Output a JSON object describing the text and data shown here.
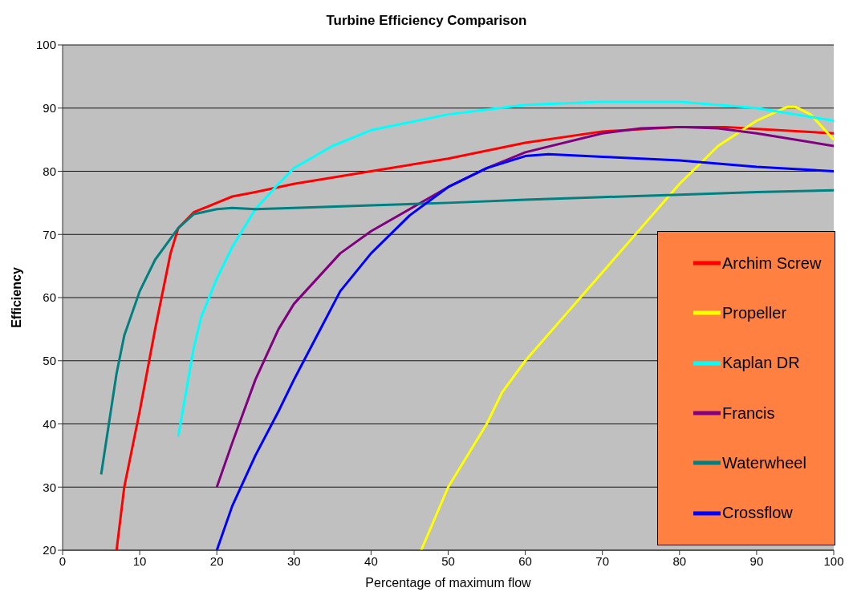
{
  "chart_data": {
    "type": "line",
    "title": "Turbine Efficiency Comparison",
    "xlabel": "Percentage of maximum flow",
    "ylabel": "Efficiency",
    "xlim": [
      0,
      100
    ],
    "xticks": [
      0,
      10,
      20,
      30,
      40,
      50,
      60,
      70,
      80,
      90,
      100
    ],
    "ylim": [
      20,
      100
    ],
    "yticks": [
      20,
      30,
      40,
      50,
      60,
      70,
      80,
      90,
      100
    ],
    "grid": "y",
    "legend": "right",
    "marker": "none",
    "line_style": "solid",
    "series": [
      {
        "name": "Archim Screw",
        "color": "#ff0000",
        "x": [
          7,
          8,
          10,
          12,
          14,
          15,
          17,
          20,
          22,
          25,
          30,
          40,
          50,
          60,
          70,
          80,
          86,
          90,
          100
        ],
        "values": [
          20,
          30,
          42,
          55,
          67,
          71,
          73.5,
          75,
          76,
          76.7,
          78,
          80,
          82,
          84.5,
          86.3,
          87,
          87,
          86.7,
          86
        ]
      },
      {
        "name": "Propeller",
        "color": "#ffff00",
        "x": [
          46.5,
          50,
          55,
          57,
          60,
          65,
          70,
          75,
          80,
          85,
          90,
          94,
          95,
          97,
          100
        ],
        "values": [
          20,
          30,
          40,
          45,
          50,
          57,
          64,
          71,
          78,
          84,
          88,
          90.2,
          90.2,
          89,
          85
        ]
      },
      {
        "name": "Kaplan DR",
        "color": "#00ffff",
        "x": [
          15,
          16,
          17,
          18,
          20,
          22,
          25,
          28,
          30,
          35,
          40,
          50,
          60,
          70,
          80,
          90,
          95,
          100
        ],
        "values": [
          38,
          45,
          52,
          57,
          63,
          68,
          74,
          78,
          80.5,
          84,
          86.5,
          89,
          90.5,
          91,
          91,
          90,
          89,
          88
        ]
      },
      {
        "name": "Francis",
        "color": "#800080",
        "x": [
          20,
          22,
          25,
          28,
          30,
          33,
          36,
          40,
          45,
          50,
          55,
          60,
          70,
          75,
          80,
          85,
          90,
          100
        ],
        "values": [
          30,
          37,
          47,
          55,
          59,
          63,
          67,
          70.5,
          74,
          77.5,
          80.5,
          83,
          86,
          86.8,
          87,
          86.8,
          86,
          84
        ]
      },
      {
        "name": "Waterwheel",
        "color": "#008080",
        "x": [
          5,
          6,
          7,
          8,
          10,
          12,
          15,
          17,
          20,
          22,
          25,
          30,
          40,
          50,
          60,
          70,
          80,
          90,
          100
        ],
        "values": [
          32,
          40,
          48,
          54,
          61,
          66,
          71,
          73.2,
          74,
          74.2,
          74,
          74.2,
          74.6,
          75,
          75.5,
          75.9,
          76.3,
          76.7,
          77
        ]
      },
      {
        "name": "Crossflow",
        "color": "#0000ff",
        "x": [
          20,
          22,
          25,
          28,
          30,
          33,
          36,
          40,
          45,
          50,
          55,
          60,
          63,
          70,
          80,
          90,
          100
        ],
        "values": [
          20,
          27,
          35,
          42,
          47,
          54,
          61,
          67,
          73,
          77.5,
          80.5,
          82.4,
          82.7,
          82.3,
          81.7,
          80.7,
          80
        ]
      }
    ]
  }
}
